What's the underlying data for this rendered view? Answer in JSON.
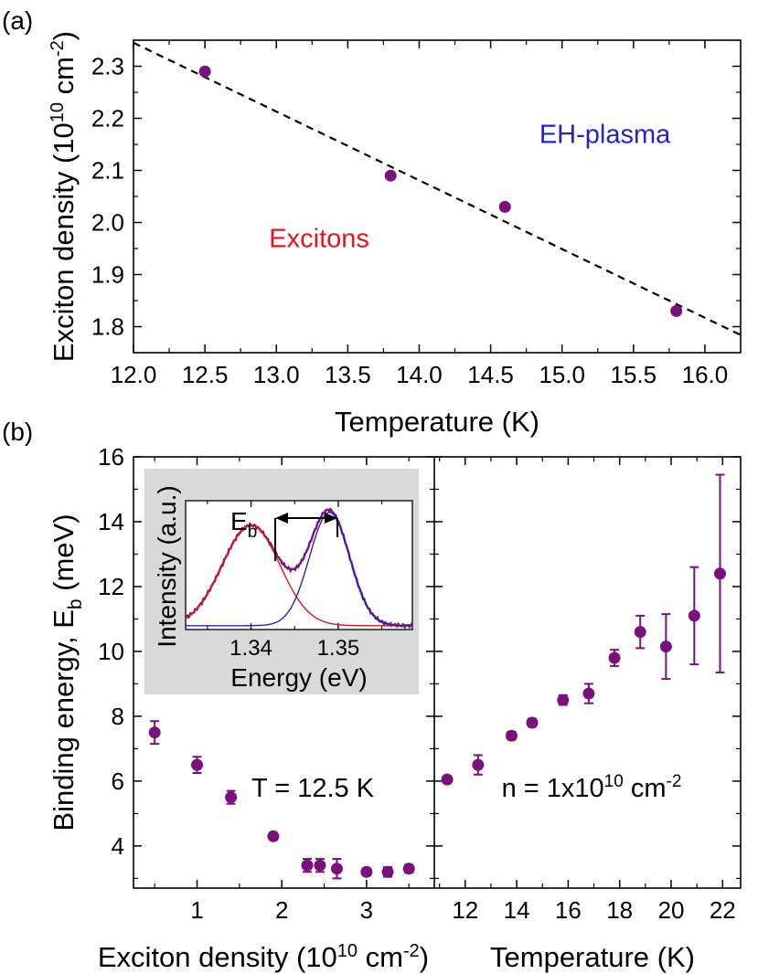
{
  "chart_data": [
    {
      "panel": "(a)",
      "type": "scatter",
      "xlabel": "Temperature (K)",
      "ylabel": "Exciton density (10",
      "ylabel_exp": "10",
      "ylabel_unit": " cm",
      "ylabel_unit_exp": "-2",
      "ylabel_close": ")",
      "xlim": [
        12.0,
        16.25
      ],
      "ylim": [
        1.75,
        2.35
      ],
      "xticks": [
        "12.0",
        "12.5",
        "13.0",
        "13.5",
        "14.0",
        "14.5",
        "15.0",
        "15.5",
        "16.0"
      ],
      "xtick_values": [
        12.0,
        12.5,
        13.0,
        13.5,
        14.0,
        14.5,
        15.0,
        15.5,
        16.0
      ],
      "yticks": [
        "1.8",
        "1.9",
        "2.0",
        "2.1",
        "2.2",
        "2.3"
      ],
      "ytick_values": [
        1.8,
        1.9,
        2.0,
        2.1,
        2.2,
        2.3
      ],
      "points": [
        {
          "x": 12.5,
          "y": 2.29
        },
        {
          "x": 13.8,
          "y": 2.09
        },
        {
          "x": 14.6,
          "y": 2.03
        },
        {
          "x": 15.8,
          "y": 1.83
        }
      ],
      "fit_line": {
        "style": "dashed",
        "x": [
          12.0,
          16.25
        ],
        "y": [
          2.345,
          1.784
        ]
      },
      "annotations": [
        {
          "text": "EH-plasma",
          "color": "#2222cc",
          "x": 15.3,
          "y": 2.17
        },
        {
          "text": "Excitons",
          "color": "#ee1111",
          "x": 13.3,
          "y": 1.97
        }
      ],
      "marker_color": "#7b0f7e"
    },
    {
      "panel": "(b)",
      "type": "scatter",
      "xlabel": "Exciton density (10",
      "xlabel_exp": "10",
      "xlabel_unit": " cm",
      "xlabel_unit_exp": "-2",
      "xlabel_close": ")",
      "ylabel": "Binding energy, E",
      "ylabel_sub": "b",
      "ylabel_unit": " (meV)",
      "xlim": [
        0.25,
        3.8
      ],
      "ylim": [
        2.7,
        16
      ],
      "xticks": [
        "1",
        "2",
        "3"
      ],
      "xtick_values": [
        1,
        2,
        3
      ],
      "yticks": [
        "4",
        "6",
        "8",
        "10",
        "12",
        "14",
        "16"
      ],
      "ytick_values": [
        4,
        6,
        8,
        10,
        12,
        14,
        16
      ],
      "points": [
        {
          "x": 0.5,
          "y": 7.5,
          "err": 0.35
        },
        {
          "x": 1.0,
          "y": 6.5,
          "err": 0.25
        },
        {
          "x": 1.4,
          "y": 5.5,
          "err": 0.2
        },
        {
          "x": 1.9,
          "y": 4.3,
          "err": 0.1
        },
        {
          "x": 2.3,
          "y": 3.4,
          "err": 0.2
        },
        {
          "x": 2.45,
          "y": 3.4,
          "err": 0.2
        },
        {
          "x": 2.65,
          "y": 3.3,
          "err": 0.3
        },
        {
          "x": 3.0,
          "y": 3.2,
          "err": 0.1
        },
        {
          "x": 3.25,
          "y": 3.2,
          "err": 0.15
        },
        {
          "x": 3.5,
          "y": 3.3,
          "err": 0.12
        }
      ],
      "annotation": {
        "text": "T = 12.5 K"
      },
      "marker_color": "#7b0f7e"
    },
    {
      "panel": "(b) right",
      "type": "scatter",
      "xlabel": "Temperature (K)",
      "xlim": [
        10.8,
        22.7
      ],
      "ylim": [
        2.7,
        16
      ],
      "xticks": [
        "12",
        "14",
        "16",
        "18",
        "20",
        "22"
      ],
      "xtick_values": [
        12,
        14,
        16,
        18,
        20,
        22
      ],
      "points": [
        {
          "x": 11.3,
          "y": 6.05,
          "err": 0.1
        },
        {
          "x": 12.5,
          "y": 6.5,
          "err": 0.3
        },
        {
          "x": 13.8,
          "y": 7.4,
          "err": 0.12
        },
        {
          "x": 14.6,
          "y": 7.8,
          "err": 0.12
        },
        {
          "x": 15.8,
          "y": 8.5,
          "err": 0.15
        },
        {
          "x": 16.8,
          "y": 8.7,
          "err": 0.3
        },
        {
          "x": 17.8,
          "y": 9.8,
          "err": 0.25
        },
        {
          "x": 18.8,
          "y": 10.6,
          "err": 0.5
        },
        {
          "x": 19.8,
          "y": 10.15,
          "err": 1.0
        },
        {
          "x": 20.9,
          "y": 11.1,
          "err": 1.5
        },
        {
          "x": 21.9,
          "y": 12.4,
          "err": 3.05
        }
      ],
      "annotation": {
        "text": "n = 1x10",
        "exp": "10",
        "unit": " cm",
        "unit_exp": "-2"
      },
      "marker_color": "#7b0f7e"
    },
    {
      "panel": "(b) inset",
      "type": "line",
      "xlabel": "Energy (eV)",
      "ylabel": "Intensity (a.u.)",
      "xlim": [
        1.3325,
        1.3585
      ],
      "xticks": [
        "1.34",
        "1.35"
      ],
      "xtick_values": [
        1.34,
        1.35
      ],
      "series": [
        {
          "name": "red peak",
          "color": "#ee1111",
          "center": 1.34,
          "amplitude": 0.78,
          "sigma": 0.0033
        },
        {
          "name": "blue peak",
          "color": "#2222cc",
          "center": 1.349,
          "amplitude": 0.88,
          "sigma": 0.0023
        },
        {
          "name": "data",
          "color": "#7b0f7e"
        }
      ],
      "baseline": 0.03,
      "arrow_label": "E",
      "arrow_label_sub": "b",
      "background": "#d9d9d9"
    }
  ],
  "panels": {
    "a": "(a)",
    "b": "(b)"
  }
}
